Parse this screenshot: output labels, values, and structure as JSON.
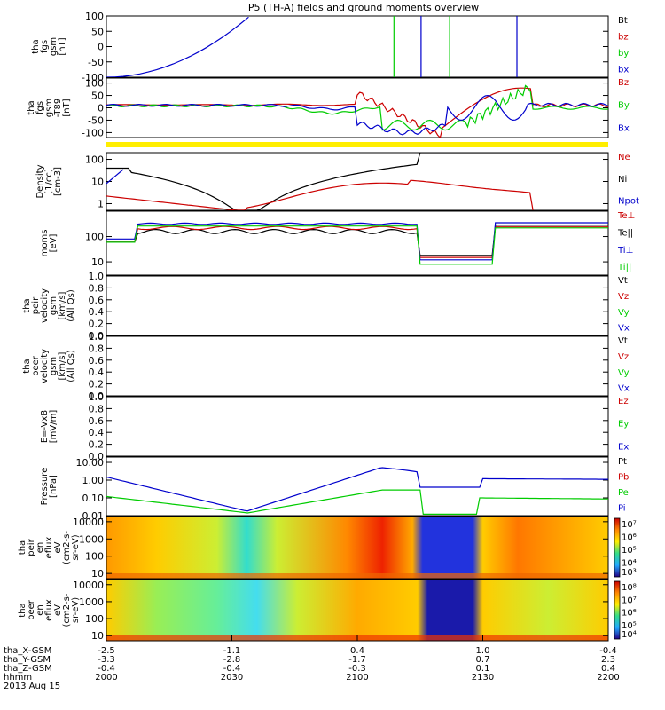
{
  "title": "P5 (TH-A) fields and ground moments overview",
  "colors": {
    "black": "#000000",
    "red": "#cc0000",
    "green": "#00cc00",
    "blue": "#0000cc",
    "yellow": "#ffee00"
  },
  "chart_data": {
    "type": "line",
    "x_ticks": [
      "2000",
      "2030",
      "2100",
      "2130",
      "2200"
    ],
    "orbit_labels": {
      "rows": [
        "tha_X-GSM",
        "tha_Y-GSM",
        "tha_Z-GSM",
        "hhmm"
      ],
      "values": [
        [
          "-2.5",
          "-1.1",
          "0.4",
          "1.0",
          "-0.4"
        ],
        [
          "-3.3",
          "-2.8",
          "-1.7",
          "0.7",
          "2.3"
        ],
        [
          "-0.4",
          "-0.4",
          "-0.3",
          "0.1",
          "0.4"
        ]
      ],
      "date": "2013 Aug 15"
    },
    "panels": [
      {
        "id": "fgs",
        "ylabel": [
          "tha",
          "fgs",
          "gsm",
          "[nT]"
        ],
        "scale": "linear",
        "ylim": [
          -100,
          100
        ],
        "ticks": [
          "100",
          "50",
          "0",
          "-50",
          "-100"
        ],
        "legend": [
          {
            "name": "Bt",
            "color": "#000000"
          },
          {
            "name": "bz",
            "color": "#cc0000"
          },
          {
            "name": "by",
            "color": "#00cc00"
          },
          {
            "name": "bx",
            "color": "#0000cc"
          }
        ]
      },
      {
        "id": "fgs_tsg",
        "ylabel": [
          "tha",
          "fgs",
          "gsm",
          "-T89",
          "[nT]"
        ],
        "scale": "linear",
        "ylim": [
          -120,
          120
        ],
        "ticks": [
          "100",
          "50",
          "0",
          "-50",
          "-100"
        ],
        "legend": [
          {
            "name": "Bz",
            "color": "#cc0000"
          },
          {
            "name": "By",
            "color": "#00cc00"
          },
          {
            "name": "Bx",
            "color": "#0000cc"
          }
        ]
      },
      {
        "id": "density",
        "ylabel": [
          "Density",
          "[1/cc]",
          "[cm-3]"
        ],
        "scale": "log",
        "ylim": [
          0.5,
          200
        ],
        "ticks": [
          "100",
          "10",
          "1"
        ],
        "legend": [
          {
            "name": "Ne",
            "color": "#cc0000"
          },
          {
            "name": "Ni",
            "color": "#000000"
          },
          {
            "name": "Npot",
            "color": "#0000cc"
          }
        ]
      },
      {
        "id": "temp",
        "ylabel": [
          "moms",
          "[eV]"
        ],
        "scale": "log",
        "ylim": [
          3,
          1000
        ],
        "ticks": [
          "100",
          "10"
        ],
        "legend": [
          {
            "name": "Te⊥",
            "color": "#cc0000"
          },
          {
            "name": "Te||",
            "color": "#000000"
          },
          {
            "name": "Ti⊥",
            "color": "#0000cc"
          },
          {
            "name": "Ti||",
            "color": "#00cc00"
          }
        ]
      },
      {
        "id": "peir_v",
        "ylabel": [
          "tha",
          "peir",
          "velocity",
          "gsm",
          "[km/s]",
          "(All Qs)"
        ],
        "scale": "linear",
        "ylim": [
          0,
          1
        ],
        "ticks": [
          "1.0",
          "0.8",
          "0.6",
          "0.4",
          "0.2",
          "0.0"
        ],
        "legend": [
          {
            "name": "Vt",
            "color": "#000000"
          },
          {
            "name": "Vz",
            "color": "#cc0000"
          },
          {
            "name": "Vy",
            "color": "#00cc00"
          },
          {
            "name": "Vx",
            "color": "#0000cc"
          }
        ]
      },
      {
        "id": "peer_v",
        "ylabel": [
          "tha",
          "peer",
          "velocity",
          "gsm",
          "[km/s]",
          "(All Qs)"
        ],
        "scale": "linear",
        "ylim": [
          0,
          1
        ],
        "ticks": [
          "1.0",
          "0.8",
          "0.6",
          "0.4",
          "0.2",
          "0.0"
        ],
        "legend": [
          {
            "name": "Vt",
            "color": "#000000"
          },
          {
            "name": "Vz",
            "color": "#cc0000"
          },
          {
            "name": "Vy",
            "color": "#00cc00"
          },
          {
            "name": "Vx",
            "color": "#0000cc"
          }
        ]
      },
      {
        "id": "efield",
        "ylabel": [
          "E=-VxB",
          "[mV/m]"
        ],
        "scale": "linear",
        "ylim": [
          0,
          1
        ],
        "ticks": [
          "1.0",
          "0.8",
          "0.6",
          "0.4",
          "0.2",
          "0.0"
        ],
        "legend": [
          {
            "name": "Ez",
            "color": "#cc0000"
          },
          {
            "name": "Ey",
            "color": "#00cc00"
          },
          {
            "name": "Ex",
            "color": "#0000cc"
          }
        ]
      },
      {
        "id": "pressure",
        "ylabel": [
          "Pressure",
          "[nPa]"
        ],
        "scale": "log",
        "ylim": [
          0.01,
          20
        ],
        "ticks": [
          "10.00",
          "1.00",
          "0.10",
          "0.01"
        ],
        "legend": [
          {
            "name": "Pt",
            "color": "#000000"
          },
          {
            "name": "Pb",
            "color": "#cc0000"
          },
          {
            "name": "Pe",
            "color": "#00cc00"
          },
          {
            "name": "Pi",
            "color": "#0000cc"
          }
        ]
      },
      {
        "id": "peir_spec",
        "ylabel": [
          "tha",
          "peir",
          "en",
          "eflux",
          "eV",
          "(cm2-s-",
          "sr-eV)"
        ],
        "scale": "log",
        "ylim": [
          5,
          20000
        ],
        "ticks": [
          "10000",
          "1000",
          "100",
          "10"
        ],
        "colorbar": [
          "10⁷",
          "10⁶",
          "10⁵",
          "10⁴",
          "10³"
        ]
      },
      {
        "id": "peer_spec",
        "ylabel": [
          "tha",
          "peer",
          "en",
          "eflux",
          "eV",
          "(cm2-s-",
          "sr-eV)"
        ],
        "scale": "log",
        "ylim": [
          5,
          20000
        ],
        "ticks": [
          "10000",
          "1000",
          "100",
          "10"
        ],
        "colorbar": [
          "10⁸",
          "10⁷",
          "10⁶",
          "10⁵",
          "10⁴"
        ]
      }
    ]
  }
}
